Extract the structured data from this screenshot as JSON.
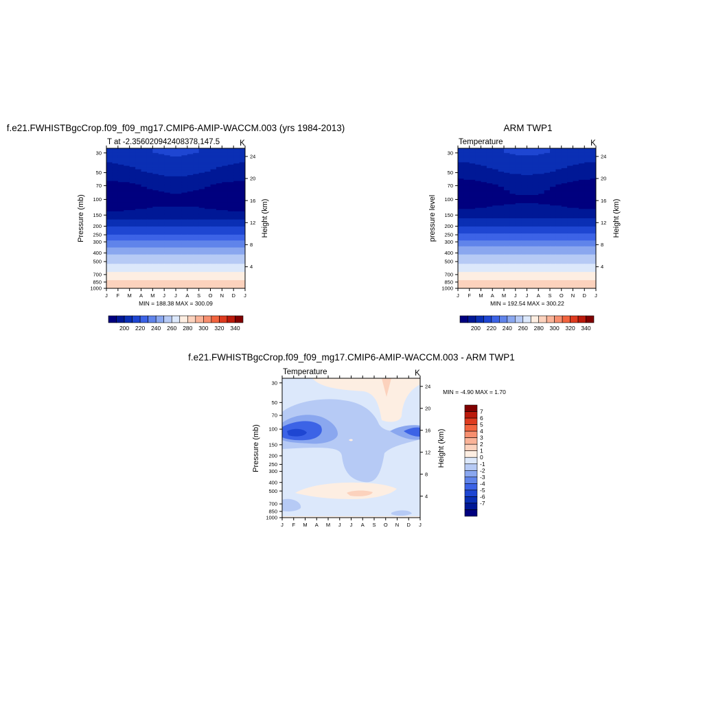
{
  "colors": {
    "seq": [
      "#00007f",
      "#001896",
      "#0a2fb4",
      "#1e46d2",
      "#3c63e6",
      "#6084ea",
      "#8aa7ef",
      "#b6caf5",
      "#dce8fb",
      "#fdeee2",
      "#fcd2bd",
      "#fab398",
      "#f78f6f",
      "#f2643f",
      "#de3b1f",
      "#bb1a0c",
      "#800000"
    ],
    "diff": [
      "#00007f",
      "#001896",
      "#0a2fb4",
      "#1e46d2",
      "#3c63e6",
      "#6084ea",
      "#8aa7ef",
      "#b6caf5",
      "#dce8fb",
      "#fdeee2",
      "#fcd2bd",
      "#fab398",
      "#f78f6f",
      "#f2643f",
      "#de3b1f",
      "#bb1a0c",
      "#800000"
    ]
  },
  "chart_data": [
    {
      "type": "contour",
      "title": "f.e21.FWHISTBgcCrop.f09_f09_mg17.CMIP6-AMIP-WACCM.003 (yrs 1984-2013)",
      "left_title": "T at -2.356020942408378,147.5",
      "units": "K",
      "ylabel": "Pressure (mb)",
      "ylabel_right": "Height (km)",
      "minmax": "MIN = 188.38  MAX = 300.09",
      "x_ticks": [
        "J",
        "F",
        "M",
        "A",
        "M",
        "J",
        "J",
        "A",
        "S",
        "O",
        "N",
        "D",
        "J"
      ],
      "y_ticks": [
        "30",
        "50",
        "70",
        "100",
        "150",
        "200",
        "250",
        "300",
        "400",
        "500",
        "700",
        "850",
        "1000"
      ],
      "y_ticks_right": [
        "24",
        "20",
        "16",
        "12",
        "8",
        "4"
      ],
      "colorbar_labels": [
        "200",
        "220",
        "240",
        "260",
        "280",
        "300",
        "320",
        "340"
      ],
      "contour_levels": [
        195,
        200,
        205,
        210,
        215,
        220,
        225,
        230,
        235,
        240,
        245,
        250,
        255,
        260,
        265,
        270,
        275,
        280,
        285,
        290,
        295,
        300
      ],
      "profile": [
        {
          "p": 30,
          "t": 218
        },
        {
          "p": 50,
          "t": 209
        },
        {
          "p": 70,
          "t": 200
        },
        {
          "p": 100,
          "t": 194
        },
        {
          "p": 150,
          "t": 204
        },
        {
          "p": 200,
          "t": 219
        },
        {
          "p": 250,
          "t": 231
        },
        {
          "p": 300,
          "t": 242
        },
        {
          "p": 400,
          "t": 259
        },
        {
          "p": 500,
          "t": 268
        },
        {
          "p": 700,
          "t": 283
        },
        {
          "p": 850,
          "t": 293
        },
        {
          "p": 1000,
          "t": 300
        }
      ]
    },
    {
      "type": "contour",
      "title": "ARM TWP1",
      "left_title": "Temperature",
      "units": "K",
      "ylabel": "pressure level",
      "ylabel_right": "Height (km)",
      "minmax": "MIN = 192.54  MAX = 300.22",
      "x_ticks": [
        "J",
        "F",
        "M",
        "A",
        "M",
        "J",
        "J",
        "A",
        "S",
        "O",
        "N",
        "D",
        "J"
      ],
      "y_ticks": [
        "30",
        "50",
        "70",
        "100",
        "150",
        "200",
        "250",
        "300",
        "400",
        "500",
        "700",
        "850",
        "1000"
      ],
      "y_ticks_right": [
        "24",
        "20",
        "16",
        "12",
        "8",
        "4"
      ],
      "colorbar_labels": [
        "200",
        "220",
        "240",
        "260",
        "280",
        "300",
        "320",
        "340"
      ],
      "contour_levels": [
        195,
        200,
        205,
        210,
        215,
        220,
        225,
        230,
        235,
        240,
        245,
        250,
        255,
        260,
        265,
        270,
        275,
        280,
        285,
        290,
        295,
        300
      ],
      "profile": [
        {
          "p": 30,
          "t": 218
        },
        {
          "p": 50,
          "t": 208
        },
        {
          "p": 70,
          "t": 199
        },
        {
          "p": 100,
          "t": 196
        },
        {
          "p": 150,
          "t": 205
        },
        {
          "p": 200,
          "t": 220
        },
        {
          "p": 250,
          "t": 232
        },
        {
          "p": 300,
          "t": 243
        },
        {
          "p": 400,
          "t": 259
        },
        {
          "p": 500,
          "t": 268
        },
        {
          "p": 700,
          "t": 283
        },
        {
          "p": 850,
          "t": 293
        },
        {
          "p": 1000,
          "t": 300
        }
      ]
    },
    {
      "type": "contour",
      "title": "f.e21.FWHISTBgcCrop.f09_f09_mg17.CMIP6-AMIP-WACCM.003 - ARM TWP1",
      "left_title": "Temperature",
      "units": "K",
      "ylabel": "Pressure (mb)",
      "ylabel_right": "Height (km)",
      "minmax": "MIN =  -4.90  MAX =   1.70",
      "x_ticks": [
        "J",
        "F",
        "M",
        "A",
        "M",
        "J",
        "J",
        "A",
        "S",
        "O",
        "N",
        "D",
        "J"
      ],
      "y_ticks": [
        "30",
        "50",
        "70",
        "100",
        "150",
        "200",
        "250",
        "300",
        "400",
        "500",
        "700",
        "850",
        "1000"
      ],
      "y_ticks_right": [
        "24",
        "20",
        "16",
        "12",
        "8",
        "4"
      ],
      "colorbar_labels": [
        "7",
        "6",
        "5",
        "4",
        "3",
        "2",
        "1",
        "0",
        "-1",
        "-2",
        "-3",
        "-4",
        "-5",
        "-6",
        "-7"
      ],
      "contour_levels": [
        -7,
        -6,
        -5,
        -4,
        -3,
        -2,
        -1,
        0,
        1,
        2,
        3,
        4,
        5,
        6,
        7
      ]
    }
  ]
}
